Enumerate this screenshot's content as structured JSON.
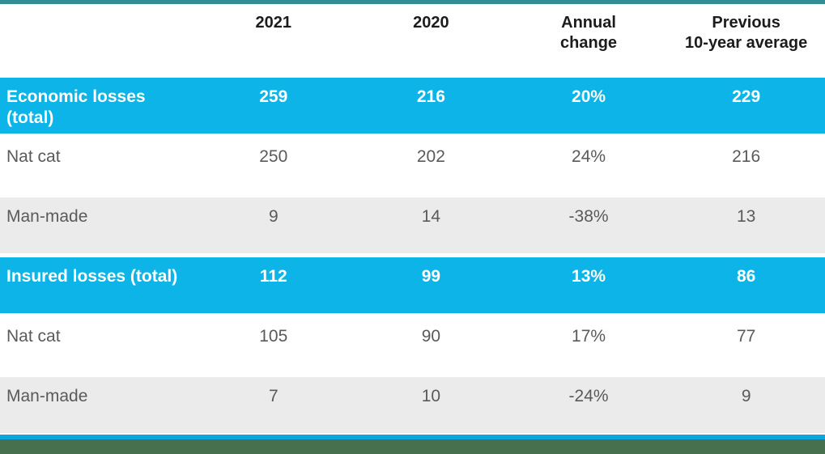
{
  "colors": {
    "accent_blue": "#0db4e7",
    "bottom_line_blue": "#0ca5de",
    "top_bar_teal": "#308e93",
    "bottom_bar_green": "#47714e",
    "shaded_row_gray": "#ebebeb",
    "body_text_gray": "#5a5a5a",
    "header_text": "#1c1c1c",
    "highlight_text": "#ffffff"
  },
  "header": {
    "corner_label": "",
    "cols": [
      {
        "line1": "2021",
        "line2": ""
      },
      {
        "line1": "2020",
        "line2": ""
      },
      {
        "line1": "Annual",
        "line2": "change"
      },
      {
        "line1": "Previous",
        "line2": "10-year average"
      }
    ]
  },
  "chart_data": {
    "type": "table",
    "title": "",
    "columns": [
      "",
      "2021",
      "2020",
      "Annual change",
      "Previous 10-year average"
    ],
    "rows": [
      {
        "label": "Economic losses (total)",
        "values": [
          "259",
          "216",
          "20%",
          "229"
        ],
        "emphasis": true
      },
      {
        "label": "Nat cat",
        "values": [
          "250",
          "202",
          "24%",
          "216"
        ],
        "emphasis": false
      },
      {
        "label": "Man-made",
        "values": [
          "9",
          "14",
          "-38%",
          "13"
        ],
        "emphasis": false
      },
      {
        "label": "Insured losses (total)",
        "values": [
          "112",
          "99",
          "13%",
          "86"
        ],
        "emphasis": true
      },
      {
        "label": "Nat cat",
        "values": [
          "105",
          "90",
          "17%",
          "77"
        ],
        "emphasis": false
      },
      {
        "label": "Man-made",
        "values": [
          "7",
          "10",
          "-24%",
          "9"
        ],
        "emphasis": false
      }
    ]
  }
}
